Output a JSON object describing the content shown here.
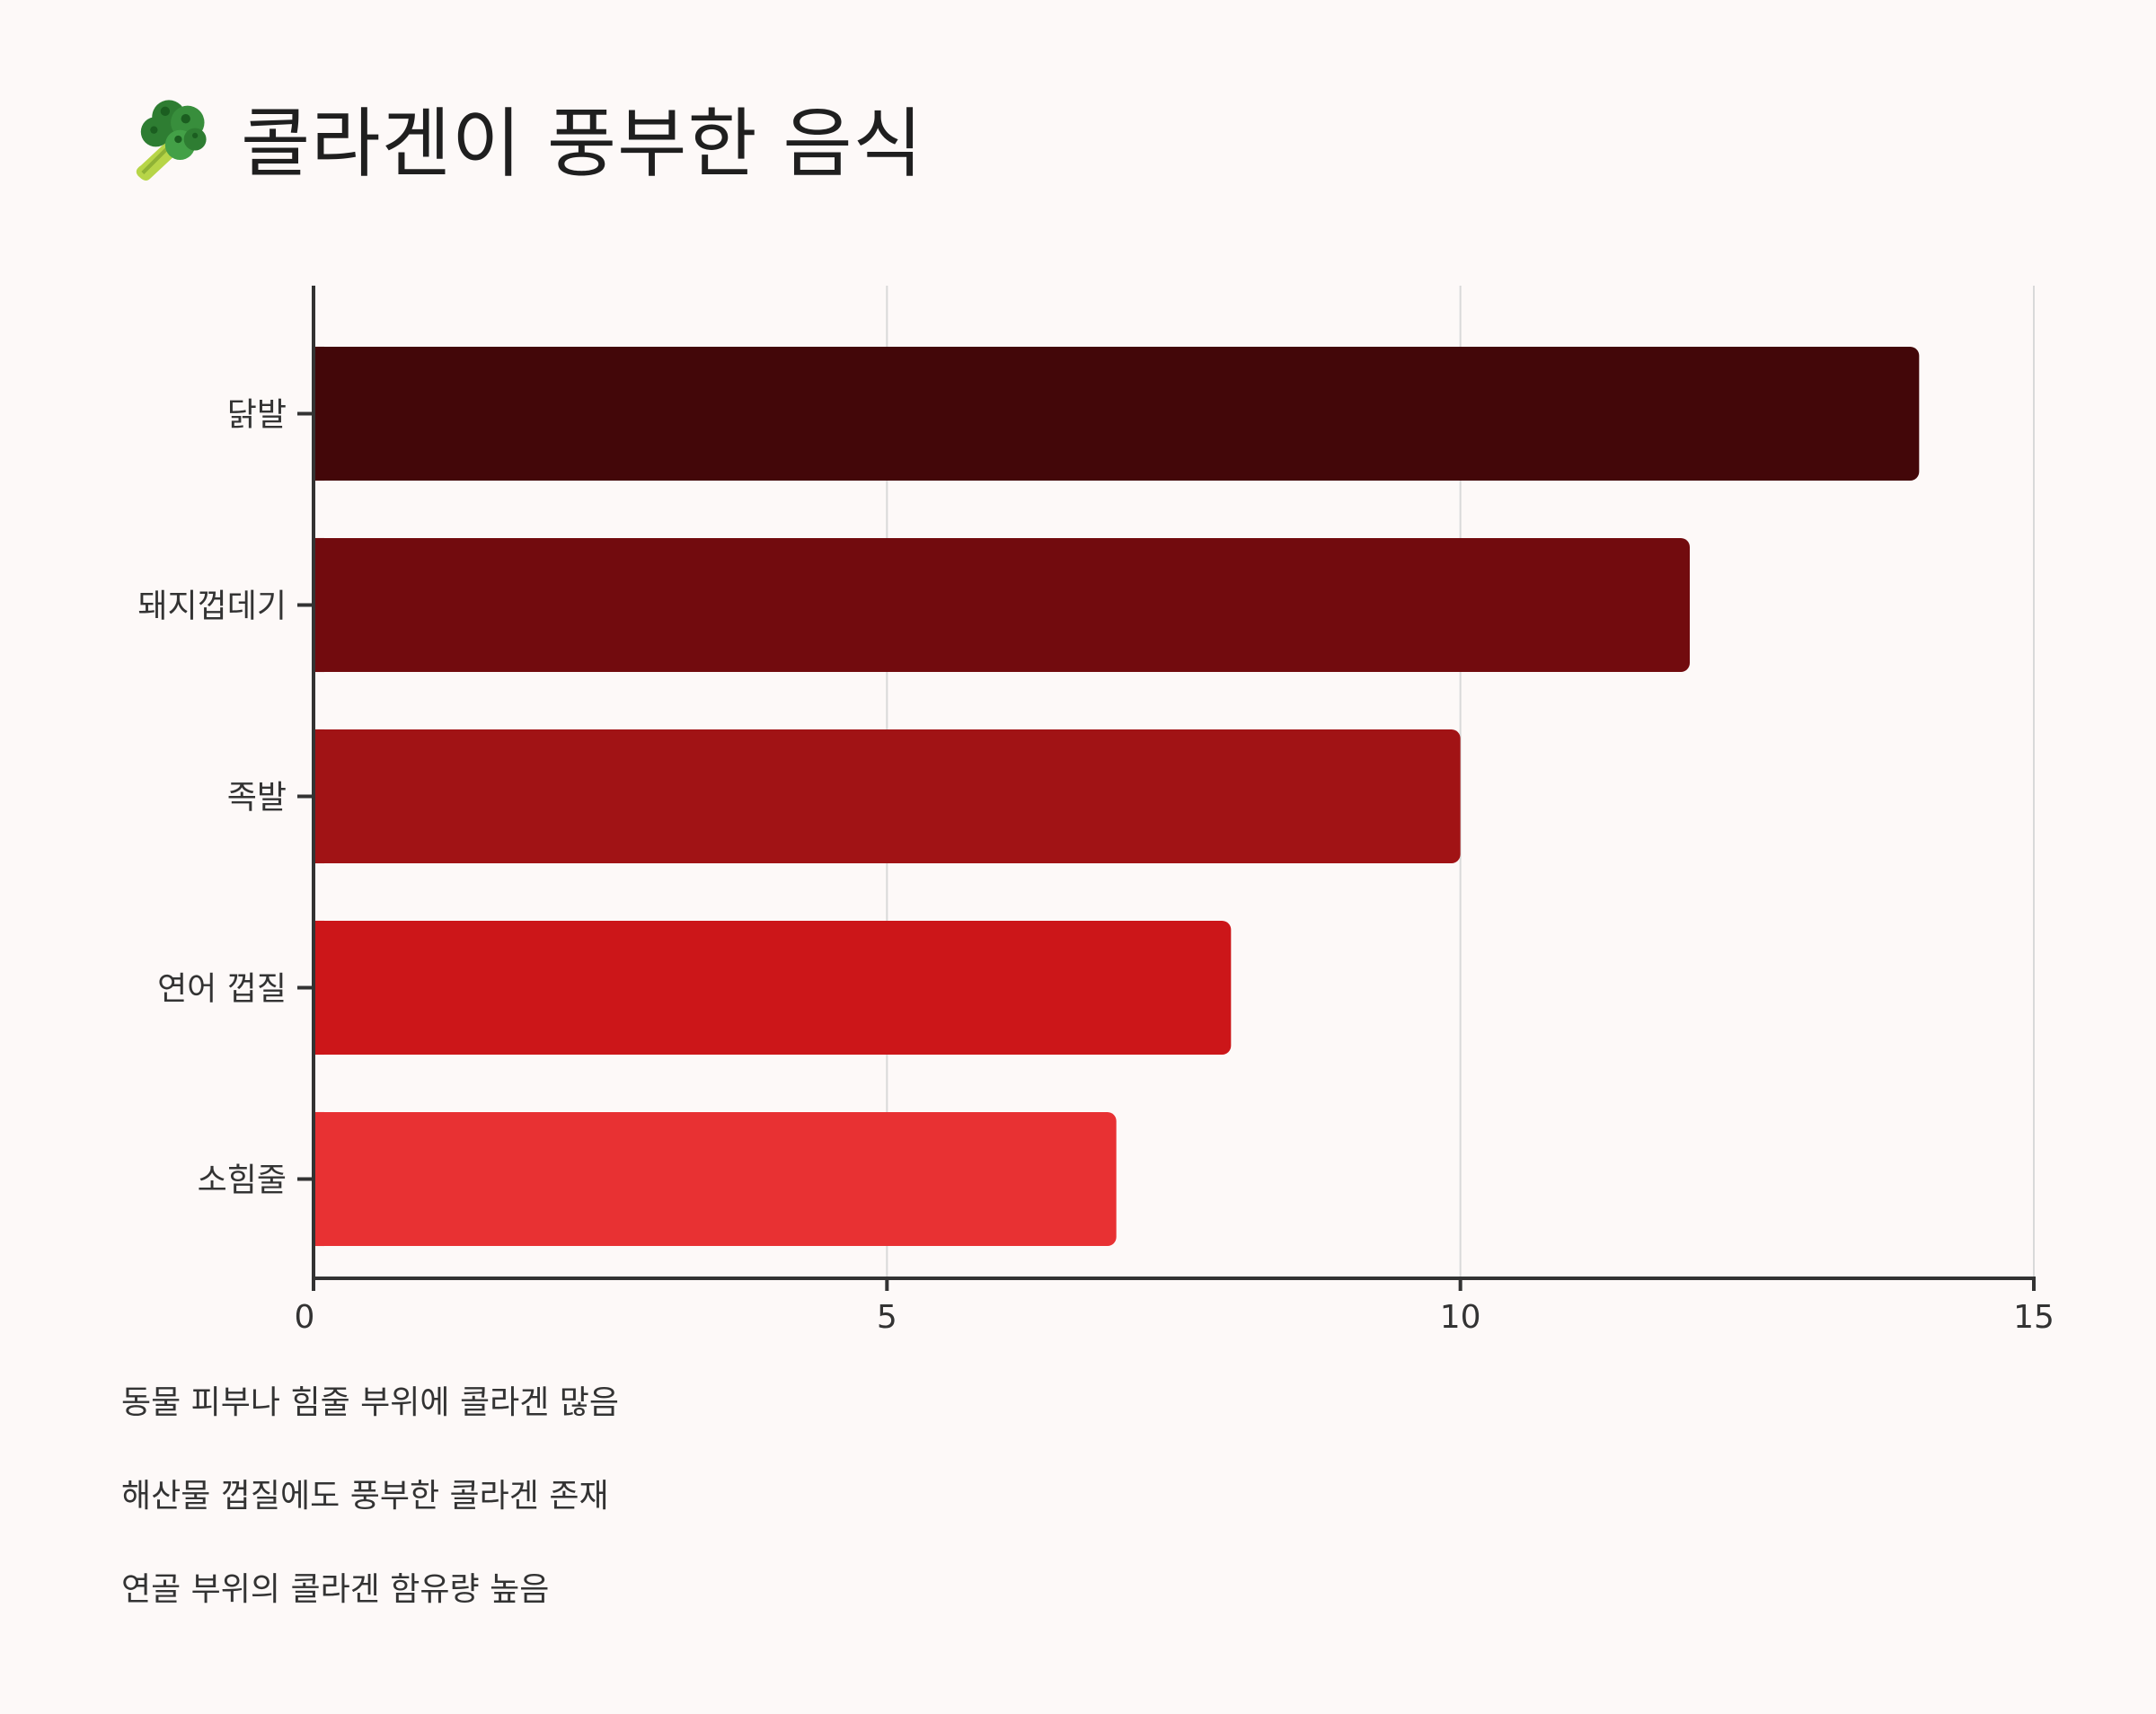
{
  "title": {
    "icon": "broccoli-icon",
    "text": "콜라겐이 풍부한 음식"
  },
  "colors": {
    "background": "#fdf9f8",
    "axis": "#333333",
    "grid": "#d9d9d9",
    "label": "#333333",
    "bars": [
      "#430709",
      "#720b0e",
      "#a11315",
      "#cc1619",
      "#e83133"
    ]
  },
  "chart_data": {
    "type": "bar",
    "orientation": "horizontal",
    "categories": [
      "닭발",
      "돼지껍데기",
      "족발",
      "연어 껍질",
      "소힘줄"
    ],
    "values": [
      14,
      12,
      10,
      8,
      7
    ],
    "xlim": [
      0,
      15
    ],
    "xticks": [
      0,
      5,
      10,
      15
    ],
    "grid": "vertical",
    "legend": "none",
    "title": "",
    "xlabel": "",
    "ylabel": ""
  },
  "notes": [
    "동물 피부나 힘줄 부위에 콜라겐 많음",
    "해산물 껍질에도 풍부한 콜라겐 존재",
    "연골 부위의 콜라겐 함유량 높음"
  ]
}
